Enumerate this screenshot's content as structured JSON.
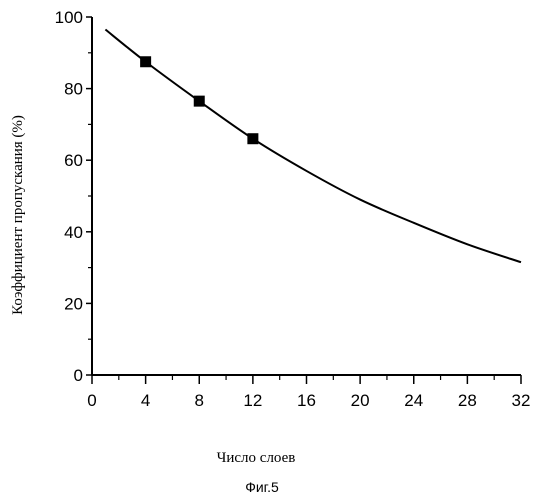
{
  "chart_data": {
    "type": "line",
    "xlabel": "Число слоев",
    "ylabel": "Коэффициент пропускания (%)",
    "xlim": [
      0,
      32
    ],
    "ylim": [
      0,
      100
    ],
    "x_ticks": [
      0,
      4,
      8,
      12,
      16,
      20,
      24,
      28,
      32
    ],
    "y_ticks": [
      0,
      20,
      40,
      60,
      80,
      100
    ],
    "x_tick_labels": [
      "0",
      "4",
      "8",
      "12",
      "16",
      "20",
      "24",
      "28",
      "32"
    ],
    "y_tick_labels": [
      "0",
      "20",
      "40",
      "60",
      "80",
      "100"
    ],
    "grid": false,
    "legend": "none",
    "series": [
      {
        "style": "line",
        "x": [
          1,
          4,
          8,
          12,
          16,
          20,
          24,
          28,
          32
        ],
        "y": [
          96.5,
          87.5,
          76.5,
          66.0,
          57.0,
          49.0,
          42.5,
          36.5,
          31.5
        ]
      },
      {
        "style": "markers",
        "marker": "square",
        "x": [
          4,
          8,
          12
        ],
        "y": [
          87.5,
          76.5,
          66.0
        ]
      }
    ]
  },
  "caption": "Фиг.5"
}
